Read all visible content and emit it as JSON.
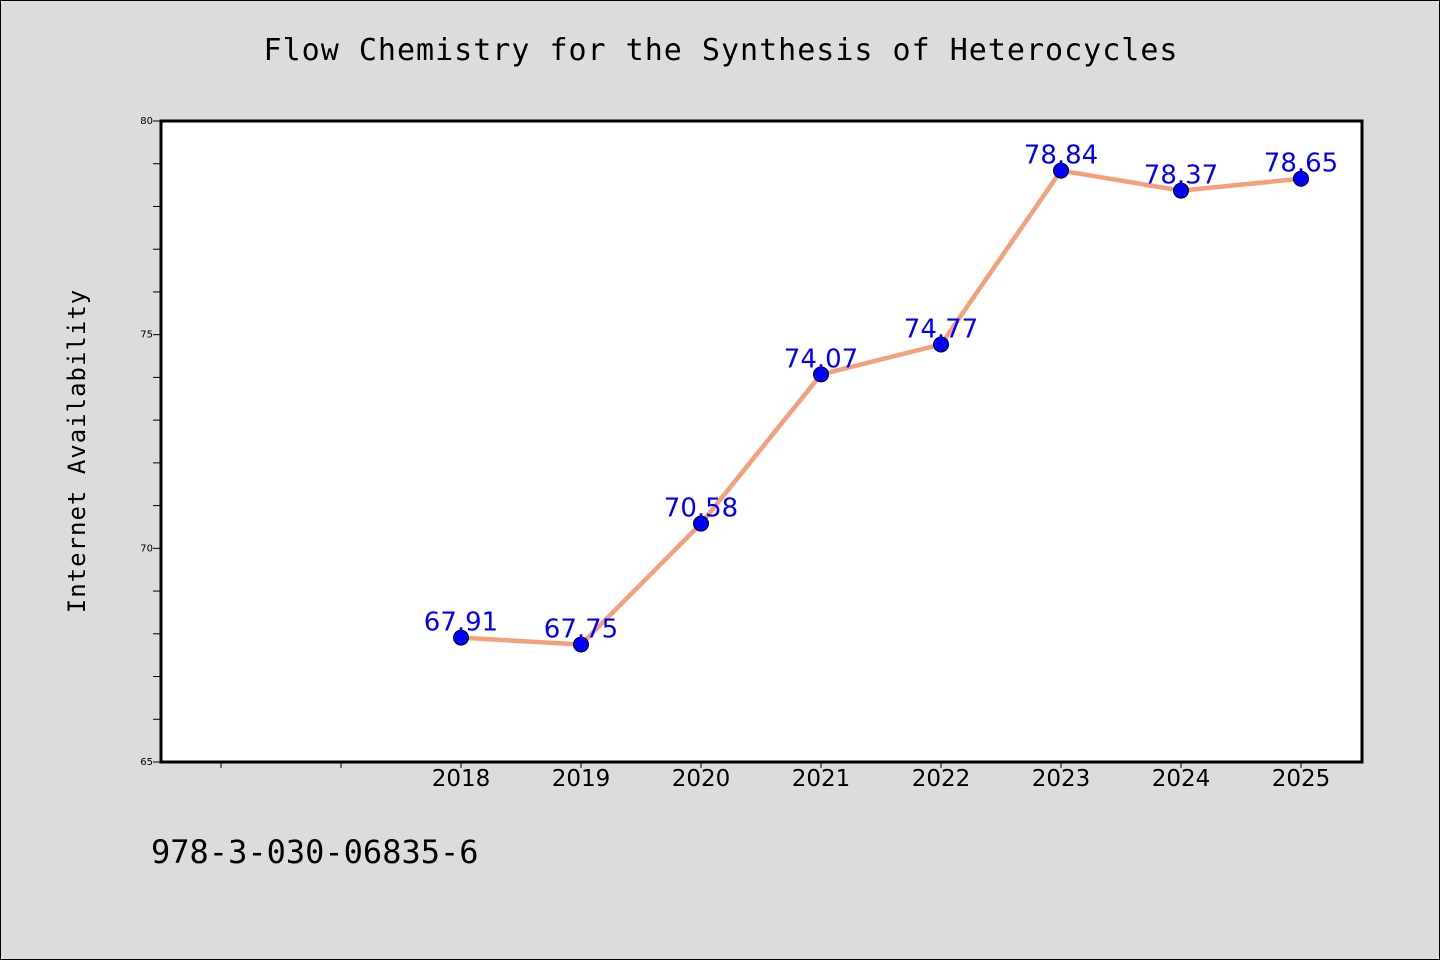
{
  "chart_data": {
    "type": "line",
    "title": "Flow Chemistry for the Synthesis of Heterocycles",
    "xlabel": "",
    "ylabel": "Internet Availability",
    "categories": [
      "2018",
      "2019",
      "2020",
      "2021",
      "2022",
      "2023",
      "2024",
      "2025"
    ],
    "series": [
      {
        "values": [
          67.91,
          67.75,
          70.58,
          74.07,
          74.77,
          78.84,
          78.37,
          78.65
        ],
        "labels": [
          "67.91",
          "67.75",
          "70.58",
          "74.07",
          "74.77",
          "78.84",
          "78.37",
          "78.65"
        ]
      }
    ],
    "ylim": [
      65,
      80
    ],
    "yticks": [
      "65",
      "70",
      "75",
      "80"
    ],
    "grid": false,
    "line_color": "#f4a07a",
    "marker_color": "#0000ff",
    "label_color": "#0000ff"
  },
  "footnote": "978-3-030-06835-6"
}
